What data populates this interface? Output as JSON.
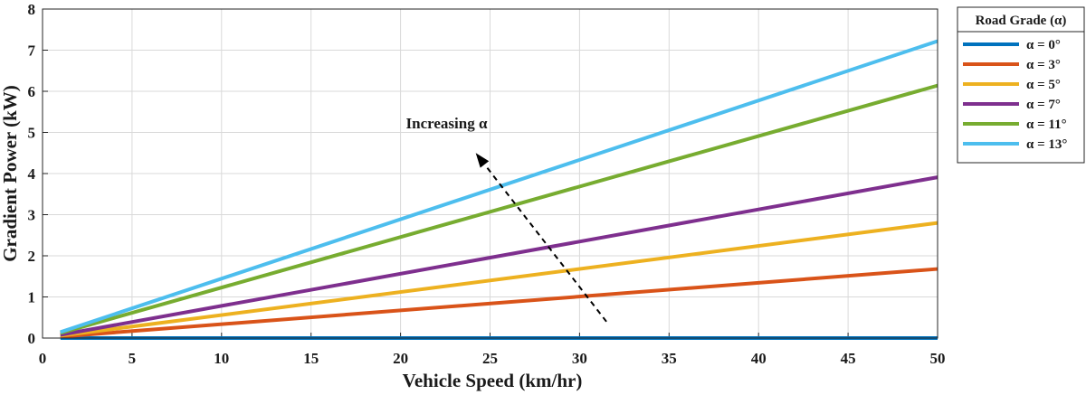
{
  "chart_data": {
    "type": "line",
    "title": "",
    "xlabel": "Vehicle Speed (km/hr)",
    "ylabel": "Gradient Power (kW)",
    "xlim": [
      0,
      50
    ],
    "ylim": [
      0,
      8
    ],
    "xticks": [
      0,
      5,
      10,
      15,
      20,
      25,
      30,
      35,
      40,
      45,
      50
    ],
    "yticks": [
      0,
      1,
      2,
      3,
      4,
      5,
      6,
      7,
      8
    ],
    "grid": true,
    "legend_title": "Road Grade (α)",
    "legend_position": "outside-right",
    "x": [
      1,
      50
    ],
    "series": [
      {
        "name": "α = 0°",
        "color": "#0072BD",
        "values": [
          0,
          0
        ]
      },
      {
        "name": "α = 3°",
        "color": "#D95319",
        "values": [
          0.034,
          1.68
        ]
      },
      {
        "name": "α = 5°",
        "color": "#EDB120",
        "values": [
          0.056,
          2.8
        ]
      },
      {
        "name": "α = 7°",
        "color": "#7E2F8E",
        "values": [
          0.078,
          3.91
        ]
      },
      {
        "name": "α = 11°",
        "color": "#77AC30",
        "values": [
          0.123,
          6.14
        ]
      },
      {
        "name": "α = 13°",
        "color": "#4DBEEE",
        "values": [
          0.145,
          7.22
        ]
      }
    ],
    "annotation": {
      "text": "Increasing α",
      "arrow_from": [
        31.5,
        0.4
      ],
      "arrow_to": [
        24.2,
        4.5
      ],
      "text_at": [
        20.3,
        5.1
      ]
    }
  }
}
